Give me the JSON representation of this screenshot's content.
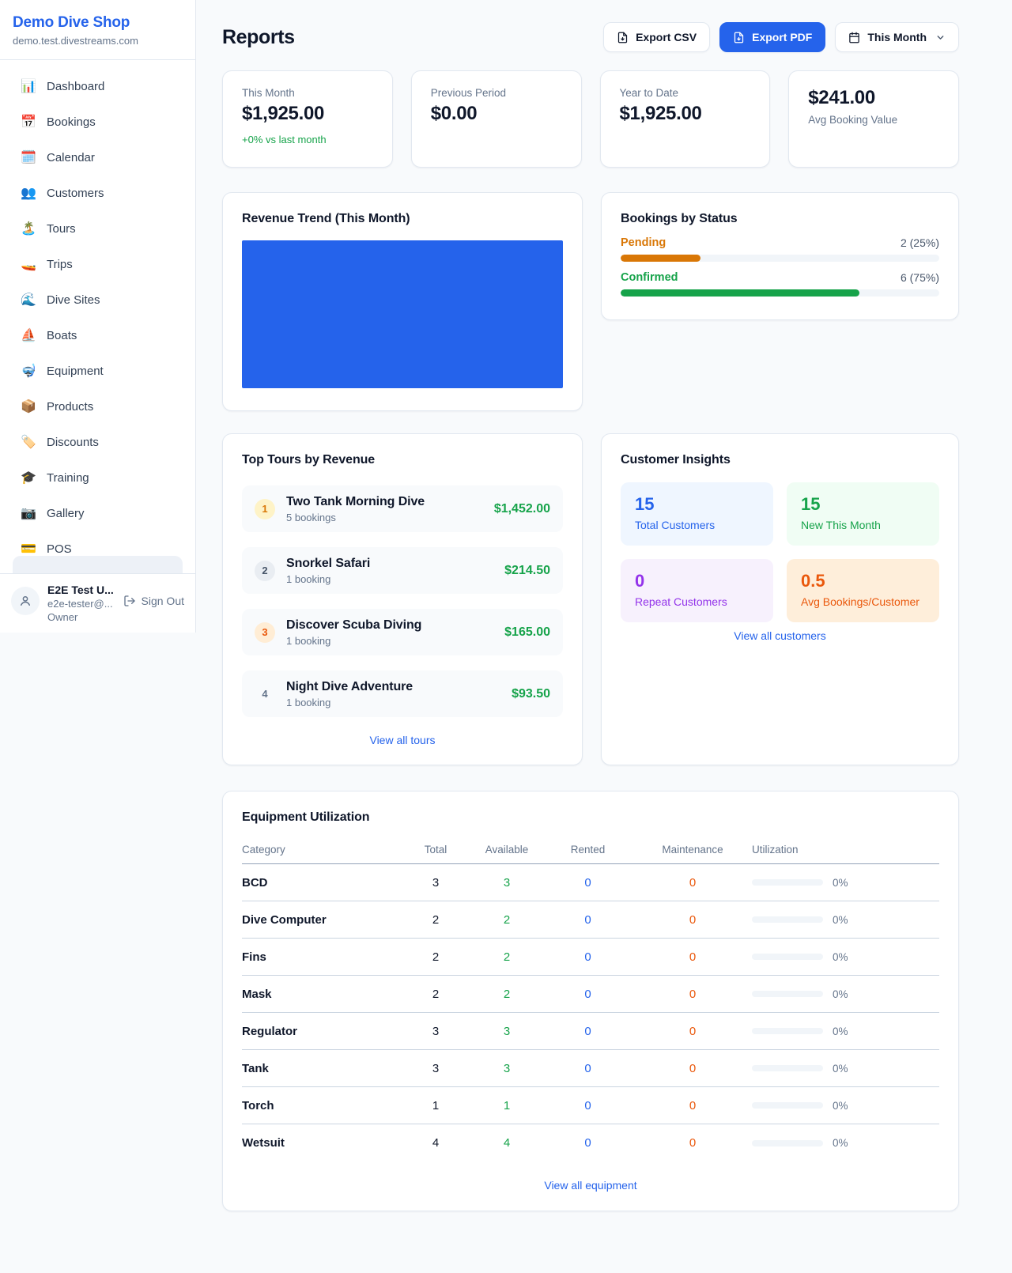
{
  "colors": {
    "accent": "#2563eb",
    "green": "#16a34a",
    "amber": "#d97706",
    "orange": "#ea580c",
    "purple": "#9333ea",
    "text_dark": "#0f172a",
    "text_gray": "#64748b",
    "border": "#e2e8f0",
    "page_bg": "#f8fafc",
    "card_bg": "#ffffff"
  },
  "sidebar": {
    "shop_name": "Demo Dive Shop",
    "shop_domain": "demo.test.divestreams.com",
    "items": [
      {
        "key": "sidebar-item-dashboard",
        "icon": "📊",
        "label": "Dashboard"
      },
      {
        "key": "sidebar-item-bookings",
        "icon": "📅",
        "label": "Bookings"
      },
      {
        "key": "sidebar-item-calendar",
        "icon": "🗓️",
        "label": "Calendar"
      },
      {
        "key": "sidebar-item-customers",
        "icon": "👥",
        "label": "Customers"
      },
      {
        "key": "sidebar-item-tours",
        "icon": "🏝️",
        "label": "Tours"
      },
      {
        "key": "sidebar-item-trips",
        "icon": "🚤",
        "label": "Trips"
      },
      {
        "key": "sidebar-item-dive-sites",
        "icon": "🌊",
        "label": "Dive Sites"
      },
      {
        "key": "sidebar-item-boats",
        "icon": "⛵",
        "label": "Boats"
      },
      {
        "key": "sidebar-item-equipment",
        "icon": "🤿",
        "label": "Equipment"
      },
      {
        "key": "sidebar-item-products",
        "icon": "📦",
        "label": "Products"
      },
      {
        "key": "sidebar-item-discounts",
        "icon": "🏷️",
        "label": "Discounts"
      },
      {
        "key": "sidebar-item-training",
        "icon": "🎓",
        "label": "Training"
      },
      {
        "key": "sidebar-item-gallery",
        "icon": "📷",
        "label": "Gallery"
      },
      {
        "key": "sidebar-item-pos",
        "icon": "💳",
        "label": "POS"
      }
    ],
    "user": {
      "name": "E2E Test U...",
      "email": "e2e-tester@...",
      "role": "Owner",
      "sign_out_label": "Sign Out"
    }
  },
  "header": {
    "title": "Reports",
    "export_csv_label": "Export CSV",
    "export_pdf_label": "Export PDF",
    "period_label": "This Month"
  },
  "stats": [
    {
      "label": "This Month",
      "value": "$1,925.00",
      "delta": "+0% vs last month"
    },
    {
      "label": "Previous Period",
      "value": "$0.00"
    },
    {
      "label": "Year to Date",
      "value": "$1,925.00"
    },
    {
      "label": "Avg Booking Value",
      "value": "$241.00"
    }
  ],
  "revenue_trend": {
    "title": "Revenue Trend (This Month)"
  },
  "bookings_by_status": {
    "title": "Bookings by Status",
    "rows": [
      {
        "label": "Pending",
        "display": "2 (25%)",
        "pct": 25,
        "variant": "orange"
      },
      {
        "label": "Confirmed",
        "display": "6 (75%)",
        "pct": 75,
        "variant": "green"
      }
    ]
  },
  "top_tours": {
    "title": "Top Tours by Revenue",
    "view_all_label": "View all tours",
    "items": [
      {
        "rank": "1",
        "name": "Two Tank Morning Dive",
        "bookings": "5 bookings",
        "revenue": "$1,452.00",
        "variant": "gold"
      },
      {
        "rank": "2",
        "name": "Snorkel Safari",
        "bookings": "1 booking",
        "revenue": "$214.50",
        "variant": "silver"
      },
      {
        "rank": "3",
        "name": "Discover Scuba Diving",
        "bookings": "1 booking",
        "revenue": "$165.00",
        "variant": "bronze"
      },
      {
        "rank": "4",
        "name": "Night Dive Adventure",
        "bookings": "1 booking",
        "revenue": "$93.50",
        "variant": "plain"
      }
    ]
  },
  "customer_insights": {
    "title": "Customer Insights",
    "view_all_label": "View all customers",
    "tiles": [
      {
        "value": "15",
        "label": "Total Customers",
        "variant": "blue"
      },
      {
        "value": "15",
        "label": "New This Month",
        "variant": "green"
      },
      {
        "value": "0",
        "label": "Repeat Customers",
        "variant": "purple"
      },
      {
        "value": "0.5",
        "label": "Avg Bookings/Customer",
        "variant": "orange"
      }
    ]
  },
  "equipment": {
    "title": "Equipment Utilization",
    "view_all_label": "View all equipment",
    "columns": [
      "Category",
      "Total",
      "Available",
      "Rented",
      "Maintenance",
      "Utilization"
    ],
    "rows": [
      {
        "category": "BCD",
        "total": "3",
        "available": "3",
        "rented": "0",
        "maintenance": "0",
        "utilization_pct": 0,
        "utilization_label": "0%"
      },
      {
        "category": "Dive Computer",
        "total": "2",
        "available": "2",
        "rented": "0",
        "maintenance": "0",
        "utilization_pct": 0,
        "utilization_label": "0%"
      },
      {
        "category": "Fins",
        "total": "2",
        "available": "2",
        "rented": "0",
        "maintenance": "0",
        "utilization_pct": 0,
        "utilization_label": "0%"
      },
      {
        "category": "Mask",
        "total": "2",
        "available": "2",
        "rented": "0",
        "maintenance": "0",
        "utilization_pct": 0,
        "utilization_label": "0%"
      },
      {
        "category": "Regulator",
        "total": "3",
        "available": "3",
        "rented": "0",
        "maintenance": "0",
        "utilization_pct": 0,
        "utilization_label": "0%"
      },
      {
        "category": "Tank",
        "total": "3",
        "available": "3",
        "rented": "0",
        "maintenance": "0",
        "utilization_pct": 0,
        "utilization_label": "0%"
      },
      {
        "category": "Torch",
        "total": "1",
        "available": "1",
        "rented": "0",
        "maintenance": "0",
        "utilization_pct": 0,
        "utilization_label": "0%"
      },
      {
        "category": "Wetsuit",
        "total": "4",
        "available": "4",
        "rented": "0",
        "maintenance": "0",
        "utilization_pct": 0,
        "utilization_label": "0%"
      }
    ]
  }
}
